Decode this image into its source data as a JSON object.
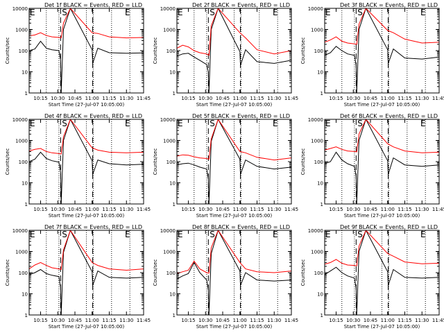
{
  "shared": {
    "xlabel": "Start Time (27-Jul-07 10:05:00)",
    "ylabel": "Counts/sec",
    "x_tick_labels": [
      "10:15",
      "10:30",
      "10:45",
      "11:00",
      "11:15",
      "11:30",
      "11:45"
    ],
    "x_tick_minutes": [
      10,
      25,
      40,
      55,
      70,
      85,
      100
    ],
    "y_tick_labels": [
      "1",
      "10",
      "100",
      "1000",
      "10000"
    ],
    "y_tick_values": [
      1,
      10,
      100,
      1000,
      10000
    ],
    "xlim_minutes": [
      0,
      100
    ],
    "ylim": [
      1,
      10000
    ],
    "dotted_lines_minutes": [
      15,
      26,
      50,
      56,
      72,
      88
    ],
    "dashed_lines_minutes": [
      27.5,
      55.5
    ],
    "marker_letters": [
      "E",
      "S",
      "E"
    ],
    "marker_minutes": [
      0,
      28,
      83
    ],
    "colors": {
      "events": "#000000",
      "lld": "#ff0000",
      "axes": "#000000"
    }
  },
  "chart_data": [
    {
      "type": "line",
      "title": "Det 1f BLACK = Events, RED = LLD",
      "series": [
        {
          "name": "Events",
          "color": "#000000",
          "x": [
            0,
            5,
            10,
            15,
            20,
            26,
            27.5,
            28,
            30,
            36,
            55,
            55.5,
            60,
            70,
            85,
            100
          ],
          "values": [
            100,
            120,
            280,
            130,
            110,
            100,
            35,
            1,
            1000,
            10000,
            110,
            25,
            130,
            80,
            75,
            78
          ]
        },
        {
          "name": "LLD",
          "color": "#ff0000",
          "x": [
            0,
            5,
            10,
            15,
            20,
            26,
            28,
            30,
            36,
            55,
            60,
            70,
            85,
            100
          ],
          "values": [
            500,
            550,
            700,
            520,
            450,
            420,
            400,
            2000,
            10000,
            700,
            650,
            450,
            400,
            420
          ]
        }
      ]
    },
    {
      "type": "line",
      "title": "Det 2f BLACK = Events, RED = LLD",
      "series": [
        {
          "name": "Events",
          "color": "#000000",
          "x": [
            0,
            5,
            10,
            15,
            20,
            26,
            27.5,
            28,
            30,
            36,
            55,
            55.5,
            60,
            70,
            85,
            100
          ],
          "values": [
            55,
            70,
            75,
            50,
            35,
            22,
            10,
            1,
            1000,
            10000,
            90,
            20,
            110,
            30,
            25,
            35
          ]
        },
        {
          "name": "LLD",
          "color": "#ff0000",
          "x": [
            0,
            5,
            10,
            15,
            20,
            26,
            28,
            30,
            36,
            55,
            60,
            70,
            85,
            100
          ],
          "values": [
            130,
            180,
            150,
            100,
            80,
            70,
            60,
            1500,
            10000,
            700,
            400,
            110,
            70,
            100
          ]
        }
      ]
    },
    {
      "type": "line",
      "title": "Det 3f BLACK = Events, RED = LLD",
      "series": [
        {
          "name": "Events",
          "color": "#000000",
          "x": [
            0,
            5,
            10,
            15,
            20,
            26,
            27.5,
            28,
            30,
            36,
            55,
            55.5,
            60,
            70,
            85,
            100
          ],
          "values": [
            60,
            80,
            160,
            100,
            70,
            60,
            20,
            1,
            1000,
            10000,
            110,
            25,
            120,
            45,
            40,
            50
          ]
        },
        {
          "name": "LLD",
          "color": "#ff0000",
          "x": [
            0,
            5,
            10,
            15,
            20,
            26,
            28,
            30,
            36,
            55,
            60,
            70,
            85,
            100
          ],
          "values": [
            250,
            320,
            450,
            280,
            230,
            210,
            200,
            1800,
            10000,
            900,
            700,
            350,
            230,
            250
          ]
        }
      ]
    },
    {
      "type": "line",
      "title": "Det 4f BLACK = Events, RED = LLD",
      "series": [
        {
          "name": "Events",
          "color": "#000000",
          "x": [
            0,
            5,
            10,
            15,
            20,
            26,
            27.5,
            28,
            30,
            36,
            55,
            55.5,
            60,
            70,
            85,
            100
          ],
          "values": [
            100,
            130,
            280,
            140,
            110,
            95,
            30,
            1,
            1000,
            10000,
            110,
            25,
            120,
            80,
            70,
            75
          ]
        },
        {
          "name": "LLD",
          "color": "#ff0000",
          "x": [
            0,
            5,
            10,
            15,
            20,
            26,
            28,
            30,
            36,
            55,
            60,
            70,
            85,
            100
          ],
          "values": [
            320,
            380,
            420,
            300,
            260,
            240,
            230,
            1500,
            10000,
            450,
            350,
            280,
            260,
            280
          ]
        }
      ]
    },
    {
      "type": "line",
      "title": "Det 5f BLACK = Events, RED = LLD",
      "series": [
        {
          "name": "Events",
          "color": "#000000",
          "x": [
            0,
            5,
            10,
            15,
            20,
            26,
            27.5,
            28,
            30,
            36,
            55,
            55.5,
            60,
            70,
            85,
            100
          ],
          "values": [
            70,
            80,
            85,
            70,
            55,
            45,
            15,
            1,
            900,
            10000,
            130,
            25,
            120,
            60,
            45,
            55
          ]
        },
        {
          "name": "LLD",
          "color": "#ff0000",
          "x": [
            0,
            5,
            10,
            15,
            20,
            26,
            28,
            30,
            36,
            55,
            60,
            70,
            85,
            100
          ],
          "values": [
            180,
            210,
            200,
            170,
            150,
            140,
            130,
            1200,
            10000,
            300,
            260,
            160,
            120,
            150
          ]
        }
      ]
    },
    {
      "type": "line",
      "title": "Det 6f BLACK = Events, RED = LLD",
      "series": [
        {
          "name": "Events",
          "color": "#000000",
          "x": [
            0,
            5,
            10,
            15,
            20,
            26,
            27.5,
            28,
            30,
            36,
            55,
            55.5,
            60,
            70,
            85,
            100
          ],
          "values": [
            80,
            100,
            280,
            120,
            80,
            60,
            20,
            1,
            1000,
            10000,
            110,
            25,
            150,
            70,
            60,
            70
          ]
        },
        {
          "name": "LLD",
          "color": "#ff0000",
          "x": [
            0,
            5,
            10,
            15,
            20,
            26,
            28,
            30,
            36,
            55,
            60,
            70,
            85,
            100
          ],
          "values": [
            350,
            420,
            500,
            380,
            320,
            300,
            290,
            2000,
            10000,
            700,
            500,
            320,
            260,
            280
          ]
        }
      ]
    },
    {
      "type": "line",
      "title": "Det 7f BLACK = Events, RED = LLD",
      "series": [
        {
          "name": "Events",
          "color": "#000000",
          "x": [
            0,
            5,
            10,
            15,
            20,
            26,
            27.5,
            28,
            30,
            36,
            55,
            55.5,
            60,
            70,
            85,
            100
          ],
          "values": [
            80,
            100,
            140,
            90,
            75,
            65,
            20,
            1,
            900,
            10000,
            110,
            25,
            120,
            60,
            55,
            60
          ]
        },
        {
          "name": "LLD",
          "color": "#ff0000",
          "x": [
            0,
            5,
            10,
            15,
            20,
            26,
            28,
            30,
            36,
            55,
            60,
            70,
            85,
            100
          ],
          "values": [
            150,
            230,
            300,
            220,
            170,
            150,
            140,
            1200,
            10000,
            300,
            220,
            150,
            130,
            150
          ]
        }
      ]
    },
    {
      "type": "line",
      "title": "Det 8f BLACK = Events, RED = LLD",
      "series": [
        {
          "name": "Events",
          "color": "#000000",
          "x": [
            0,
            5,
            10,
            15,
            20,
            26,
            27.5,
            28,
            30,
            36,
            55,
            55.5,
            60,
            70,
            85,
            100
          ],
          "values": [
            50,
            70,
            90,
            300,
            100,
            45,
            15,
            1,
            800,
            10000,
            120,
            25,
            100,
            45,
            40,
            45
          ]
        },
        {
          "name": "LLD",
          "color": "#ff0000",
          "x": [
            0,
            5,
            10,
            15,
            20,
            26,
            28,
            30,
            36,
            55,
            60,
            70,
            85,
            100
          ],
          "values": [
            90,
            110,
            130,
            350,
            150,
            100,
            95,
            1500,
            10000,
            300,
            150,
            110,
            100,
            120
          ]
        }
      ]
    },
    {
      "type": "line",
      "title": "Det 9f BLACK = Events, RED = LLD",
      "series": [
        {
          "name": "Events",
          "color": "#000000",
          "x": [
            0,
            5,
            10,
            15,
            20,
            26,
            27.5,
            28,
            30,
            36,
            55,
            55.5,
            60,
            70,
            85,
            100
          ],
          "values": [
            80,
            120,
            180,
            100,
            70,
            55,
            18,
            1,
            1000,
            10000,
            110,
            25,
            140,
            60,
            55,
            60
          ]
        },
        {
          "name": "LLD",
          "color": "#ff0000",
          "x": [
            0,
            5,
            10,
            15,
            20,
            26,
            28,
            30,
            36,
            55,
            60,
            70,
            85,
            100
          ],
          "values": [
            250,
            300,
            420,
            280,
            230,
            220,
            210,
            1800,
            10000,
            800,
            600,
            320,
            260,
            280
          ]
        }
      ]
    }
  ]
}
